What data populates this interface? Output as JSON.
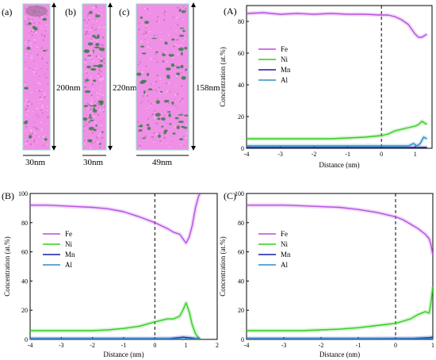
{
  "colors": {
    "Fe": "#b84fe0",
    "Ni": "#33cc22",
    "Mn": "#1a1aa8",
    "Al": "#2b8fc4",
    "tip_pink": "#ef8fe6",
    "tip_dark": "#8e6b88",
    "precip": "#3b7b4a",
    "frame": "#9fd7cf"
  },
  "tips": [
    {
      "label": "(a)",
      "height_label": "200nm",
      "width_label": "30nm",
      "precip_density": 0.12
    },
    {
      "label": "(b)",
      "height_label": "220nm",
      "width_label": "30nm",
      "precip_density": 0.45
    },
    {
      "label": "(c)",
      "height_label": "158nm",
      "width_label": "49nm",
      "precip_density": 0.7
    }
  ],
  "chart_data": [
    {
      "type": "line",
      "panel": "(A)",
      "xlabel": "Distance (nm)",
      "ylabel": "Concentration (at.%)",
      "xlim": [
        -4,
        1.5
      ],
      "ylim": [
        0,
        90
      ],
      "xticks": [
        -4,
        -3,
        -2,
        -1,
        0,
        1
      ],
      "yticks": [
        0,
        20,
        40,
        60,
        80
      ],
      "interface_x": 0,
      "legend": [
        "Fe",
        "Ni",
        "Mn",
        "Al"
      ],
      "legend_position": "left-middle",
      "series": [
        {
          "name": "Fe",
          "x": [
            -4,
            -3.5,
            -3,
            -2.5,
            -2,
            -1.5,
            -1,
            -0.5,
            0,
            0.2,
            0.4,
            0.6,
            0.8,
            1.0,
            1.1,
            1.2,
            1.35
          ],
          "y": [
            85,
            85.5,
            84.5,
            85,
            84.5,
            85,
            84.5,
            84.5,
            84,
            84,
            83,
            81,
            78,
            72,
            70,
            70,
            72
          ]
        },
        {
          "name": "Ni",
          "x": [
            -4,
            -3.5,
            -3,
            -2.5,
            -2,
            -1.5,
            -1,
            -0.5,
            0,
            0.2,
            0.4,
            0.6,
            0.8,
            1.0,
            1.1,
            1.2,
            1.35
          ],
          "y": [
            6,
            6,
            6,
            6,
            6,
            6,
            6.5,
            7,
            8,
            9,
            11,
            12,
            13,
            14,
            15,
            17,
            15
          ]
        },
        {
          "name": "Mn",
          "x": [
            -4,
            -3,
            -2,
            -1,
            0,
            0.5,
            1.0,
            1.2,
            1.35
          ],
          "y": [
            0.5,
            0.5,
            0.5,
            0.5,
            0.5,
            0.5,
            0.5,
            0.5,
            0.5
          ]
        },
        {
          "name": "Al",
          "x": [
            -4,
            -3,
            -2,
            -1,
            0,
            0.5,
            0.8,
            0.95,
            1.05,
            1.15,
            1.25,
            1.35
          ],
          "y": [
            1.5,
            1.5,
            1.5,
            1.5,
            1.5,
            1.5,
            1.5,
            3,
            1.5,
            3,
            7,
            6
          ]
        }
      ]
    },
    {
      "type": "line",
      "panel": "(B)",
      "xlabel": "Distance (nm)",
      "ylabel": "Concentration (at.%)",
      "xlim": [
        -4,
        2
      ],
      "ylim": [
        0,
        100
      ],
      "xticks": [
        -4,
        -3,
        -2,
        -1,
        0,
        1,
        2
      ],
      "yticks": [
        0,
        20,
        40,
        60,
        80,
        100
      ],
      "interface_x": 0,
      "legend": [
        "Fe",
        "Ni",
        "Mn",
        "Al"
      ],
      "legend_position": "left-middle",
      "series": [
        {
          "name": "Fe",
          "x": [
            -4,
            -3.5,
            -3,
            -2.5,
            -2,
            -1.5,
            -1,
            -0.5,
            0,
            0.2,
            0.4,
            0.6,
            0.8,
            0.9,
            1.0,
            1.1,
            1.2,
            1.3,
            1.4,
            1.45
          ],
          "y": [
            92,
            92,
            91.5,
            91,
            90.5,
            89.5,
            87.5,
            84,
            80,
            78,
            76,
            73.5,
            72,
            69,
            66,
            70,
            78,
            90,
            98,
            100
          ]
        },
        {
          "name": "Ni",
          "x": [
            -4,
            -3.5,
            -3,
            -2.5,
            -2,
            -1.5,
            -1,
            -0.5,
            0,
            0.2,
            0.4,
            0.6,
            0.8,
            0.9,
            1.0,
            1.1,
            1.2,
            1.3,
            1.4,
            1.45
          ],
          "y": [
            6,
            6,
            6,
            6,
            6,
            6.5,
            7.5,
            9,
            12,
            13,
            14,
            14,
            16,
            20,
            25,
            19,
            10,
            4,
            1,
            0
          ]
        },
        {
          "name": "Mn",
          "x": [
            -4,
            -3,
            -2,
            -1,
            0,
            0.5,
            0.9,
            1.1,
            1.3,
            1.45
          ],
          "y": [
            0.5,
            0.5,
            0.5,
            0.5,
            0.5,
            0.6,
            1.5,
            1.2,
            0.5,
            0.3
          ]
        },
        {
          "name": "Al",
          "x": [
            -4,
            -3,
            -2,
            -1,
            0,
            1,
            1.45
          ],
          "y": [
            0.3,
            0.3,
            0.3,
            0.3,
            0.3,
            0.3,
            0.3
          ]
        }
      ]
    },
    {
      "type": "line",
      "panel": "(C)",
      "xlabel": "Distance (nm)",
      "ylabel": "Concentration (at.%)",
      "xlim": [
        -4,
        1
      ],
      "ylim": [
        0,
        100
      ],
      "xticks": [
        -4,
        -3,
        -2,
        -1,
        0,
        1
      ],
      "yticks": [
        0,
        20,
        40,
        60,
        80,
        100
      ],
      "interface_x": 0,
      "legend": [
        "Fe",
        "Ni",
        "Mn",
        "Al"
      ],
      "legend_position": "left-middle",
      "series": [
        {
          "name": "Fe",
          "x": [
            -4,
            -3.5,
            -3,
            -2.5,
            -2,
            -1.5,
            -1,
            -0.5,
            0,
            0.2,
            0.4,
            0.6,
            0.8,
            0.9,
            0.95,
            1.0
          ],
          "y": [
            92,
            92,
            92,
            91.5,
            91,
            90.5,
            89,
            87,
            84,
            82,
            79,
            76,
            72,
            69,
            65,
            58
          ]
        },
        {
          "name": "Ni",
          "x": [
            -4,
            -3.5,
            -3,
            -2.5,
            -2,
            -1.5,
            -1,
            -0.5,
            0,
            0.2,
            0.4,
            0.6,
            0.8,
            0.9,
            0.95,
            1.0
          ],
          "y": [
            6,
            6,
            6,
            6,
            6.5,
            7,
            8,
            9.5,
            11,
            12.5,
            14,
            17,
            19,
            18,
            25,
            36
          ]
        },
        {
          "name": "Mn",
          "x": [
            -4,
            -3,
            -2,
            -1,
            0,
            0.5,
            0.9,
            1.0
          ],
          "y": [
            0.5,
            0.5,
            0.5,
            0.5,
            0.6,
            0.7,
            1.2,
            1.5
          ]
        },
        {
          "name": "Al",
          "x": [
            -4,
            -3,
            -2,
            -1,
            0,
            1.0
          ],
          "y": [
            0.3,
            0.3,
            0.3,
            0.3,
            0.3,
            0.5
          ]
        }
      ]
    }
  ]
}
